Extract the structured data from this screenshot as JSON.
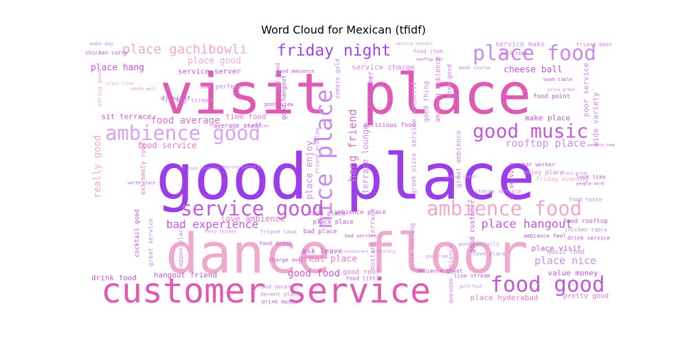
{
  "chart_data": {
    "type": "wordcloud",
    "title": "Word Cloud for Mexican (tfidf)",
    "palette": [
      "#9b3de8",
      "#e05ab4",
      "#efa9cc",
      "#c98ae8",
      "#e878c8",
      "#f2b2d8"
    ],
    "words": [
      {
        "text": "good place",
        "weight": 100,
        "color": "#9b3de8"
      },
      {
        "text": "visit place",
        "weight": 80,
        "color": "#e05ab4"
      },
      {
        "text": "dance floor",
        "weight": 76,
        "color": "#efa9cc"
      },
      {
        "text": "customer service",
        "weight": 47,
        "color": "#e05ab4"
      },
      {
        "text": "nice place",
        "weight": 30,
        "color": "#c98ae8"
      },
      {
        "text": "good music",
        "weight": 29,
        "color": "#c056d8"
      },
      {
        "text": "ambience good",
        "weight": 28,
        "color": "#d9a2f0"
      },
      {
        "text": "service good",
        "weight": 28,
        "color": "#c056d8"
      },
      {
        "text": "ambience food",
        "weight": 28,
        "color": "#efa9cc"
      },
      {
        "text": "place food",
        "weight": 27,
        "color": "#c98ae8"
      },
      {
        "text": "food good",
        "weight": 27,
        "color": "#c056d8"
      },
      {
        "text": "friday night",
        "weight": 24,
        "color": "#a044e6"
      },
      {
        "text": "place gachibowli",
        "weight": 17,
        "color": "#efa9cc"
      },
      {
        "text": "place hangout",
        "weight": 17,
        "color": "#c056d8"
      },
      {
        "text": "bad experience",
        "weight": 16,
        "color": "#c056d8"
      },
      {
        "text": "hang friend",
        "weight": 15,
        "color": "#d070c8"
      },
      {
        "text": "rooftop place",
        "weight": 15,
        "color": "#c98ae8"
      },
      {
        "text": "place nice",
        "weight": 15,
        "color": "#c98ae8"
      },
      {
        "text": "food average",
        "weight": 14,
        "color": "#d070c8"
      },
      {
        "text": "place good",
        "weight": 14,
        "color": "#efa9cc"
      },
      {
        "text": "place enjoy",
        "weight": 13,
        "color": "#c98ae8"
      },
      {
        "text": "place hang",
        "weight": 13,
        "color": "#c056d8"
      },
      {
        "text": "cheese ball",
        "weight": 13,
        "color": "#c056d8"
      },
      {
        "text": "good food",
        "weight": 13,
        "color": "#c056d8"
      },
      {
        "text": "great place",
        "weight": 12,
        "color": "#e878c8"
      },
      {
        "text": "service charge",
        "weight": 12,
        "color": "#c98ae8"
      },
      {
        "text": "ask leave",
        "weight": 12,
        "color": "#c056d8"
      },
      {
        "text": "food service",
        "weight": 11,
        "color": "#e878c8"
      },
      {
        "text": "love ambience",
        "weight": 11,
        "color": "#e878c8"
      },
      {
        "text": "service server",
        "weight": 10,
        "color": "#c056d8"
      },
      {
        "text": "make place",
        "weight": 10,
        "color": "#c056d8"
      },
      {
        "text": "hangout friend",
        "weight": 10,
        "color": "#c056d8"
      },
      {
        "text": "drink food",
        "weight": 10,
        "color": "#c056d8"
      },
      {
        "text": "place hyderabad",
        "weight": 10,
        "color": "#e878c8"
      },
      {
        "text": "value money",
        "weight": 10,
        "color": "#c056d8"
      },
      {
        "text": "pretty good",
        "weight": 9,
        "color": "#e878c8"
      },
      {
        "text": "place visit",
        "weight": 10,
        "color": "#c056d8"
      },
      {
        "text": "sit terrace",
        "weight": 10,
        "color": "#c056d8"
      },
      {
        "text": "time food",
        "weight": 10,
        "color": "#e878c8"
      },
      {
        "text": "music loud",
        "weight": 9,
        "color": "#c98ae8"
      },
      {
        "text": "food taste",
        "weight": 8,
        "color": "#c98ae8"
      },
      {
        "text": "chicken table",
        "weight": 8,
        "color": "#c98ae8"
      },
      {
        "text": "drink service",
        "weight": 8,
        "color": "#c056d8"
      },
      {
        "text": "food rooftop",
        "weight": 8,
        "color": "#c056d8"
      },
      {
        "text": "good roof",
        "weight": 10,
        "color": "#e878c8"
      },
      {
        "text": "food place",
        "weight": 9,
        "color": "#c056d8"
      },
      {
        "text": "ambience place",
        "weight": 9,
        "color": "#c056d8"
      },
      {
        "text": "terrace lounge",
        "weight": 9,
        "color": "#c98ae8"
      },
      {
        "text": "bad customer",
        "weight": 9,
        "color": "#c056d8"
      },
      {
        "text": "service pathetic",
        "weight": 9,
        "color": "#c98ae8"
      },
      {
        "text": "great ambience",
        "weight": 9,
        "color": "#c98ae8"
      },
      {
        "text": "friday evening",
        "weight": 8,
        "color": "#efa9cc"
      },
      {
        "text": "dj service",
        "weight": 9,
        "color": "#c056d8"
      },
      {
        "text": "enjoy place",
        "weight": 8,
        "color": "#c98ae8"
      },
      {
        "text": "bar worker",
        "weight": 7,
        "color": "#c056d8"
      },
      {
        "text": "service make",
        "weight": 9,
        "color": "#c98ae8"
      },
      {
        "text": "friend beer",
        "weight": 7,
        "color": "#e878c8"
      },
      {
        "text": "food point",
        "weight": 8,
        "color": "#c056d8"
      },
      {
        "text": "poor service",
        "weight": 9,
        "color": "#c98ae8"
      },
      {
        "text": "wide variety",
        "weight": 9,
        "color": "#c98ae8"
      },
      {
        "text": "amazing ambience",
        "weight": 8,
        "color": "#e878c8"
      },
      {
        "text": "good thing",
        "weight": 8,
        "color": "#c98ae8"
      },
      {
        "text": "food item",
        "weight": 8,
        "color": "#c98ae8"
      },
      {
        "text": "good hangout",
        "weight": 8,
        "color": "#c056d8"
      },
      {
        "text": "bad food",
        "weight": 8,
        "color": "#c98ae8"
      },
      {
        "text": "bar perfect",
        "weight": 8,
        "color": "#c98ae8"
      },
      {
        "text": "big screen",
        "weight": 8,
        "color": "#c98ae8"
      },
      {
        "text": "dj night",
        "weight": 8,
        "color": "#c056d8"
      },
      {
        "text": "good view",
        "weight": 7,
        "color": "#c056d8"
      },
      {
        "text": "delicious food",
        "weight": 7,
        "color": "#c056d8"
      },
      {
        "text": "zomato gold",
        "weight": 8,
        "color": "#c98ae8"
      },
      {
        "text": "average staff",
        "weight": 7,
        "color": "#c056d8"
      },
      {
        "text": "really good",
        "weight": 9,
        "color": "#efa9cc"
      },
      {
        "text": "cocktail good",
        "weight": 7,
        "color": "#c056d8"
      },
      {
        "text": "happen place",
        "weight": 7,
        "color": "#c98ae8"
      },
      {
        "text": "great service",
        "weight": 7,
        "color": "#c98ae8"
      },
      {
        "text": "friend love",
        "weight": 7,
        "color": "#c98ae8"
      },
      {
        "text": "charge ask",
        "weight": 7,
        "color": "#c056d8"
      },
      {
        "text": "food drink",
        "weight": 7,
        "color": "#c056d8"
      },
      {
        "text": "place place",
        "weight": 7,
        "color": "#c056d8"
      },
      {
        "text": "bad place",
        "weight": 7,
        "color": "#c056d8"
      },
      {
        "text": "food decent",
        "weight": 7,
        "color": "#c98ae8"
      },
      {
        "text": "decent place",
        "weight": 7,
        "color": "#c98ae8"
      },
      {
        "text": "drink music",
        "weight": 7,
        "color": "#c056d8"
      },
      {
        "text": "food little",
        "weight": 7,
        "color": "#c056d8"
      },
      {
        "text": "ambience great",
        "weight": 7,
        "color": "#c056d8"
      },
      {
        "text": "live stream",
        "weight": 7,
        "color": "#c056d8"
      },
      {
        "text": "mustang terrace",
        "weight": 8,
        "color": "#c98ae8"
      },
      {
        "text": "place mustang",
        "weight": 7,
        "color": "#c98ae8"
      },
      {
        "text": "love place",
        "weight": 7,
        "color": "#c98ae8"
      },
      {
        "text": "good customer",
        "weight": 7,
        "color": "#c056d8"
      },
      {
        "text": "awesome ambience",
        "weight": 7,
        "color": "#c98ae8"
      },
      {
        "text": "look like",
        "weight": 7,
        "color": "#c056d8"
      },
      {
        "text": "ambience feel",
        "weight": 7,
        "color": "#c056d8"
      },
      {
        "text": "extremely rude",
        "weight": 7,
        "color": "#e878c8"
      },
      {
        "text": "eating good",
        "weight": 7,
        "color": "#efa9cc"
      },
      {
        "text": "greek pizza",
        "weight": 7,
        "color": "#c98ae8"
      },
      {
        "text": "charge service",
        "weight": 6,
        "color": "#c98ae8"
      },
      {
        "text": "chicken curry",
        "weight": 7,
        "color": "#c056d8"
      },
      {
        "text": "make day",
        "weight": 6,
        "color": "#c98ae8"
      },
      {
        "text": "item good",
        "weight": 7,
        "color": "#c98ae8"
      },
      {
        "text": "food ambience",
        "weight": 6,
        "color": "#c056d8"
      },
      {
        "text": "friend problem",
        "weight": 6,
        "color": "#c98ae8"
      },
      {
        "text": "bad service",
        "weight": 6,
        "color": "#c056d8"
      },
      {
        "text": "pathetic food",
        "weight": 5,
        "color": "#c056d8"
      },
      {
        "text": "mash course",
        "weight": 6,
        "color": "#c98ae8"
      },
      {
        "text": "kill time",
        "weight": 6,
        "color": "#c056d8"
      },
      {
        "text": "rooftop bar",
        "weight": 5,
        "color": "#c056d8"
      },
      {
        "text": "service overall",
        "weight": 5,
        "color": "#c98ae8"
      },
      {
        "text": "north wall",
        "weight": 5,
        "color": "#c98ae8"
      },
      {
        "text": "pizza green",
        "weight": 5,
        "color": "#c98ae8"
      },
      {
        "text": "book table",
        "weight": 6,
        "color": "#c056d8"
      },
      {
        "text": "place crowd",
        "weight": 5,
        "color": "#efa9cc"
      },
      {
        "text": "worth place",
        "weight": 5,
        "color": "#c056d8"
      },
      {
        "text": "great view",
        "weight": 5,
        "color": "#c98ae8"
      },
      {
        "text": "hearing pathetic",
        "weight": 5,
        "color": "#c98ae8"
      },
      {
        "text": "food location",
        "weight": 5,
        "color": "#c98ae8"
      },
      {
        "text": "tasty chicken",
        "weight": 5,
        "color": "#c98ae8"
      },
      {
        "text": "good specially",
        "weight": 6,
        "color": "#c98ae8"
      },
      {
        "text": "restaurant definitely",
        "weight": 5,
        "color": "#c98ae8"
      },
      {
        "text": "outdoor indoor",
        "weight": 5,
        "color": "#c98ae8"
      },
      {
        "text": "place great",
        "weight": 5,
        "color": "#c98ae8"
      },
      {
        "text": "people word",
        "weight": 5,
        "color": "#c056d8"
      },
      {
        "text": "gold food",
        "weight": 5,
        "color": "#c98ae8"
      },
      {
        "text": "good time",
        "weight": 5,
        "color": "#c98ae8"
      }
    ]
  }
}
